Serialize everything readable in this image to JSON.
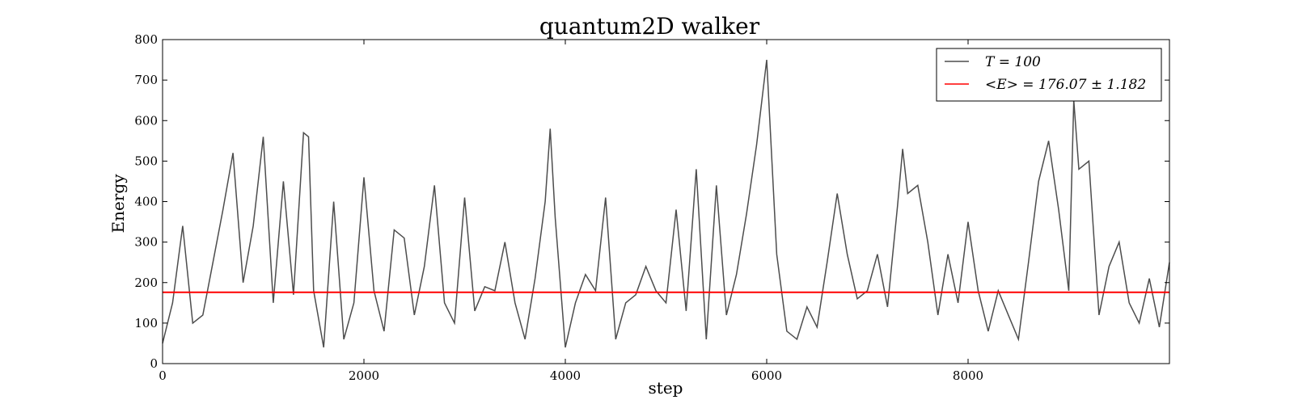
{
  "chart_data": {
    "type": "line",
    "title": "quantum2D walker",
    "xlabel": "step",
    "ylabel": "Energy",
    "xlim": [
      0,
      10000
    ],
    "ylim": [
      0,
      800
    ],
    "xticks": [
      0,
      2000,
      4000,
      6000,
      8000
    ],
    "yticks": [
      0,
      100,
      200,
      300,
      400,
      500,
      600,
      700,
      800
    ],
    "grid": false,
    "legend_position": "top-right",
    "series": [
      {
        "name": "T = 100",
        "color": "#4d4d4d",
        "x": [
          0,
          100,
          200,
          300,
          400,
          500,
          600,
          700,
          800,
          900,
          1000,
          1100,
          1200,
          1300,
          1400,
          1450,
          1500,
          1600,
          1700,
          1800,
          1900,
          2000,
          2100,
          2200,
          2300,
          2400,
          2500,
          2600,
          2700,
          2800,
          2900,
          3000,
          3100,
          3200,
          3300,
          3400,
          3500,
          3600,
          3700,
          3800,
          3850,
          3900,
          4000,
          4100,
          4200,
          4300,
          4400,
          4500,
          4600,
          4700,
          4800,
          4900,
          5000,
          5100,
          5200,
          5300,
          5400,
          5500,
          5600,
          5700,
          5800,
          5900,
          6000,
          6100,
          6200,
          6300,
          6400,
          6500,
          6600,
          6700,
          6800,
          6900,
          7000,
          7100,
          7200,
          7300,
          7350,
          7400,
          7500,
          7600,
          7700,
          7800,
          7900,
          8000,
          8100,
          8200,
          8300,
          8400,
          8500,
          8600,
          8700,
          8800,
          8900,
          9000,
          9050,
          9100,
          9200,
          9300,
          9400,
          9500,
          9600,
          9700,
          9800,
          9900,
          10000
        ],
        "y": [
          50,
          150,
          340,
          100,
          120,
          250,
          380,
          520,
          200,
          340,
          560,
          150,
          450,
          170,
          570,
          560,
          180,
          40,
          400,
          60,
          150,
          460,
          180,
          80,
          330,
          310,
          120,
          240,
          440,
          150,
          100,
          410,
          130,
          190,
          180,
          300,
          150,
          60,
          210,
          400,
          580,
          360,
          40,
          150,
          220,
          180,
          410,
          60,
          150,
          170,
          240,
          180,
          150,
          380,
          130,
          480,
          60,
          440,
          120,
          220,
          370,
          540,
          750,
          270,
          80,
          60,
          140,
          90,
          250,
          420,
          270,
          160,
          180,
          270,
          140,
          390,
          530,
          420,
          440,
          300,
          120,
          270,
          150,
          350,
          180,
          80,
          180,
          120,
          60,
          250,
          450,
          550,
          380,
          180,
          650,
          480,
          500,
          120,
          240,
          300,
          150,
          100,
          210,
          90,
          250
        ]
      },
      {
        "name": "<E> = 176.07 ± 1.182",
        "color": "#ff0000",
        "x": [
          0,
          10000
        ],
        "y": [
          176.07,
          176.07
        ]
      }
    ]
  }
}
